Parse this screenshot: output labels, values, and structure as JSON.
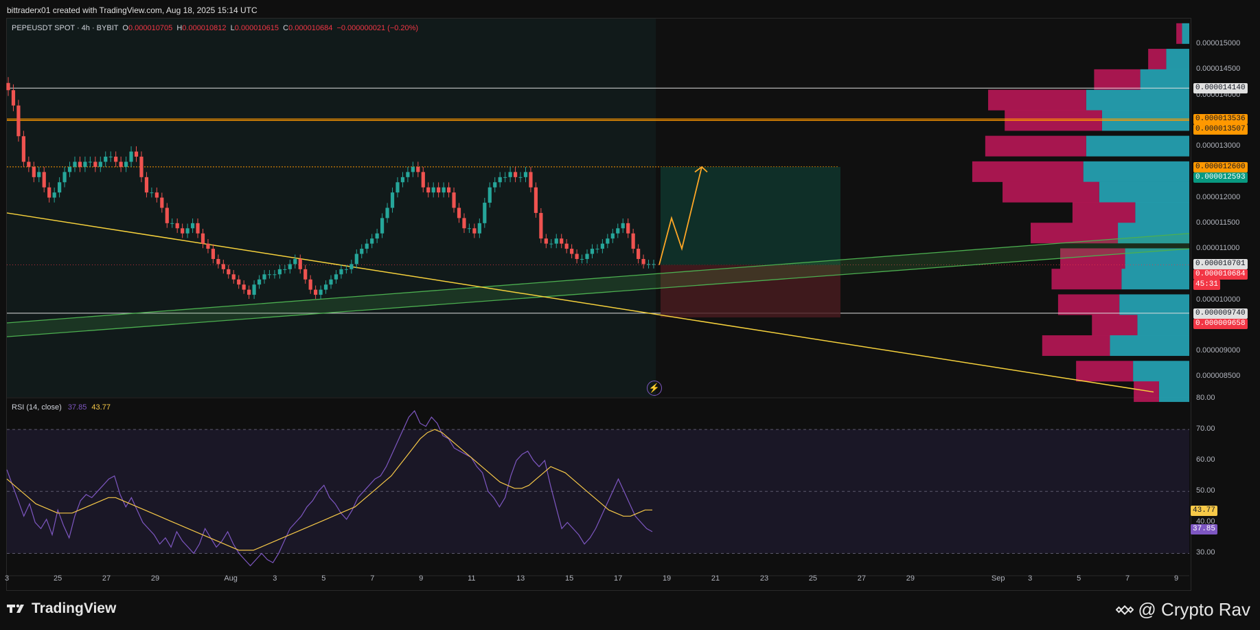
{
  "credit": "bittraderx01 created with TradingView.com, Aug 18, 2025 15:14 UTC",
  "legend": {
    "symbol": "PEPEUSDT SPOT · 4h · BYBIT",
    "open_label": "O",
    "open": "0.000010705",
    "high_label": "H",
    "high": "0.000010812",
    "low_label": "L",
    "low": "0.000010615",
    "close_label": "C",
    "close": "0.000010684",
    "change": "−0.000000021 (−0.20%)"
  },
  "rsi_legend": {
    "name": "RSI (14, close)",
    "rsi": "37.85",
    "ma": "43.77"
  },
  "colors": {
    "up": "#26a69a",
    "down": "#ef5350",
    "trendline": "#f7d23c",
    "channel": "#4caf50",
    "vp_sell": "#c2185b",
    "vp_buy": "#26a6b8",
    "rsi": "#7e57c2",
    "rsi_ma": "#f7c948",
    "resistance": "#ff9800"
  },
  "price_axis_ticks": [
    "0.000015000",
    "0.000014500",
    "0.000014000",
    "0.000013500",
    "0.000013000",
    "0.000012500",
    "0.000012000",
    "0.000011500",
    "0.000011000",
    "0.000010500",
    "0.000010000",
    "0.000009500",
    "0.000009000",
    "0.000008500"
  ],
  "price_tags": [
    {
      "text": "0.000014140",
      "bg": "#e0e0e0",
      "fg": "#131722"
    },
    {
      "text": "0.000013536",
      "bg": "#ff9800",
      "fg": "#131722"
    },
    {
      "text": "0.000013507",
      "bg": "#ff9800",
      "fg": "#131722"
    },
    {
      "text": "0.000012600",
      "bg": "#ff9800",
      "fg": "#131722"
    },
    {
      "text": "0.000012593",
      "bg": "#089981",
      "fg": "#ffffff"
    },
    {
      "text": "0.000010701",
      "bg": "#e0e0e0",
      "fg": "#131722"
    },
    {
      "text": "0.000010684",
      "bg": "#f23645",
      "fg": "#ffffff"
    },
    {
      "text": "45:31",
      "bg": "#f23645",
      "fg": "#ffffff"
    },
    {
      "text": "0.000009740",
      "bg": "#e0e0e0",
      "fg": "#131722"
    },
    {
      "text": "0.000009658",
      "bg": "#f23645",
      "fg": "#ffffff"
    }
  ],
  "rsi_axis_ticks": [
    "80.00",
    "70.00",
    "60.00",
    "50.00",
    "40.00",
    "30.00"
  ],
  "rsi_tags": [
    {
      "text": "43.77",
      "bg": "#f7c948",
      "fg": "#131722"
    },
    {
      "text": "37.85",
      "bg": "#7e57c2",
      "fg": "#ffffff"
    }
  ],
  "time_axis_ticks": [
    "3",
    "25",
    "27",
    "29",
    "Aug",
    "3",
    "5",
    "7",
    "9",
    "11",
    "13",
    "15",
    "17",
    "19",
    "21",
    "23",
    "25",
    "27",
    "29",
    "Sep",
    "3",
    "5",
    "7",
    "9"
  ],
  "footer": {
    "brand": "TradingView",
    "watermark": "@ Crypto Rav"
  },
  "chart_data": [
    {
      "type": "candlestick",
      "title": "PEPEUSDT SPOT · 4h · BYBIT",
      "ylim": [
        8.1e-06,
        1.55e-05
      ],
      "x_start": "2025-07-23",
      "closes_approx": [
        1.41e-05,
        1.38e-05,
        1.32e-05,
        1.27e-05,
        1.26e-05,
        1.24e-05,
        1.25e-05,
        1.22e-05,
        1.2e-05,
        1.21e-05,
        1.23e-05,
        1.25e-05,
        1.26e-05,
        1.27e-05,
        1.26e-05,
        1.27e-05,
        1.27e-05,
        1.26e-05,
        1.27e-05,
        1.28e-05,
        1.28e-05,
        1.27e-05,
        1.26e-05,
        1.27e-05,
        1.29e-05,
        1.28e-05,
        1.24e-05,
        1.21e-05,
        1.21e-05,
        1.2e-05,
        1.18e-05,
        1.15e-05,
        1.15e-05,
        1.14e-05,
        1.13e-05,
        1.14e-05,
        1.15e-05,
        1.13e-05,
        1.11e-05,
        1.1e-05,
        1.08e-05,
        1.07e-05,
        1.06e-05,
        1.05e-05,
        1.04e-05,
        1.03e-05,
        1.02e-05,
        1.01e-05,
        1.03e-05,
        1.04e-05,
        1.05e-05,
        1.05e-05,
        1.05e-05,
        1.06e-05,
        1.06e-05,
        1.07e-05,
        1.08e-05,
        1.06e-05,
        1.04e-05,
        1.02e-05,
        1.01e-05,
        1.02e-05,
        1.03e-05,
        1.04e-05,
        1.05e-05,
        1.06e-05,
        1.06e-05,
        1.07e-05,
        1.09e-05,
        1.1e-05,
        1.11e-05,
        1.12e-05,
        1.13e-05,
        1.16e-05,
        1.18e-05,
        1.21e-05,
        1.23e-05,
        1.24e-05,
        1.25e-05,
        1.26e-05,
        1.25e-05,
        1.22e-05,
        1.21e-05,
        1.22e-05,
        1.21e-05,
        1.22e-05,
        1.21e-05,
        1.18e-05,
        1.16e-05,
        1.14e-05,
        1.14e-05,
        1.13e-05,
        1.15e-05,
        1.19e-05,
        1.22e-05,
        1.23e-05,
        1.24e-05,
        1.24e-05,
        1.25e-05,
        1.24e-05,
        1.24e-05,
        1.25e-05,
        1.22e-05,
        1.17e-05,
        1.12e-05,
        1.11e-05,
        1.11e-05,
        1.12e-05,
        1.11e-05,
        1.1e-05,
        1.09e-05,
        1.08e-05,
        1.08e-05,
        1.09e-05,
        1.1e-05,
        1.1e-05,
        1.11e-05,
        1.12e-05,
        1.13e-05,
        1.14e-05,
        1.15e-05,
        1.13e-05,
        1.1e-05,
        1.08e-05,
        1.07e-05,
        1.07e-05,
        1.07e-05
      ],
      "levels": {
        "resistance_1": 1.414e-05,
        "resistance_2": 1.3536e-05,
        "resistance_3": 1.3507e-05,
        "target": 1.26e-05,
        "current": 1.0684e-05,
        "support_1": 9.74e-06,
        "stop": 9.658e-06
      },
      "volume_profile": [
        {
          "price": 1.52e-05,
          "sell": 0.08,
          "buy": 0.1
        },
        {
          "price": 1.47e-05,
          "sell": 0.25,
          "buy": 0.32
        },
        {
          "price": 1.43e-05,
          "sell": 0.64,
          "buy": 0.68
        },
        {
          "price": 1.39e-05,
          "sell": 1.36,
          "buy": 1.43
        },
        {
          "price": 1.35e-05,
          "sell": 1.35,
          "buy": 1.21
        },
        {
          "price": 1.3e-05,
          "sell": 1.4,
          "buy": 1.43
        },
        {
          "price": 1.25e-05,
          "sell": 1.54,
          "buy": 1.47
        },
        {
          "price": 1.21e-05,
          "sell": 1.34,
          "buy": 1.25
        },
        {
          "price": 1.17e-05,
          "sell": 0.87,
          "buy": 0.75
        },
        {
          "price": 1.13e-05,
          "sell": 1.21,
          "buy": 0.99
        },
        {
          "price": 1.08e-05,
          "sell": 0.9,
          "buy": 0.89
        },
        {
          "price": 1.04e-05,
          "sell": 0.97,
          "buy": 0.94
        },
        {
          "price": 9.9e-06,
          "sell": 0.85,
          "buy": 0.97
        },
        {
          "price": 9.5e-06,
          "sell": 0.63,
          "buy": 0.72
        },
        {
          "price": 9.1e-06,
          "sell": 0.94,
          "buy": 1.1
        },
        {
          "price": 8.6e-06,
          "sell": 0.79,
          "buy": 0.78
        },
        {
          "price": 8.2e-06,
          "sell": 0.35,
          "buy": 0.42
        }
      ]
    },
    {
      "type": "line",
      "title": "RSI (14, close)",
      "ylim": [
        25,
        80
      ],
      "series": [
        {
          "name": "RSI",
          "values": [
            57,
            52,
            47,
            42,
            46,
            40,
            38,
            41,
            36,
            44,
            39,
            35,
            42,
            47,
            49,
            48,
            50,
            52,
            54,
            55,
            49,
            45,
            48,
            44,
            40,
            38,
            36,
            33,
            35,
            32,
            37,
            34,
            32,
            30,
            33,
            38,
            35,
            32,
            34,
            37,
            33,
            30,
            28,
            26,
            28,
            30,
            28,
            27,
            30,
            34,
            38,
            40,
            42,
            45,
            47,
            50,
            52,
            48,
            46,
            43,
            41,
            44,
            48,
            50,
            52,
            54,
            55,
            58,
            62,
            66,
            70,
            74,
            76,
            72,
            71,
            74,
            72,
            68,
            67,
            64,
            63,
            62,
            61,
            58,
            56,
            50,
            48,
            45,
            48,
            55,
            60,
            62,
            63,
            60,
            58,
            60,
            52,
            45,
            38,
            40,
            38,
            36,
            33,
            35,
            38,
            42,
            46,
            50,
            54,
            50,
            46,
            42,
            40,
            38,
            37
          ]
        },
        {
          "name": "RSI MA",
          "values": [
            54,
            52,
            50,
            48,
            46,
            45,
            44,
            43,
            43,
            43,
            44,
            45,
            46,
            47,
            48,
            48,
            47,
            46,
            45,
            44,
            43,
            42,
            41,
            40,
            39,
            38,
            37,
            36,
            35,
            34,
            33,
            32,
            31,
            31,
            31,
            32,
            33,
            34,
            35,
            36,
            37,
            38,
            39,
            40,
            41,
            42,
            43,
            44,
            45,
            47,
            49,
            51,
            53,
            55,
            58,
            61,
            64,
            67,
            69,
            70,
            69,
            67,
            65,
            63,
            61,
            59,
            57,
            55,
            53,
            52,
            51,
            51,
            52,
            54,
            56,
            58,
            57,
            56,
            54,
            52,
            50,
            48,
            46,
            44,
            43,
            42,
            42,
            43,
            44,
            44
          ]
        }
      ],
      "bands": [
        30,
        50,
        70
      ]
    }
  ]
}
